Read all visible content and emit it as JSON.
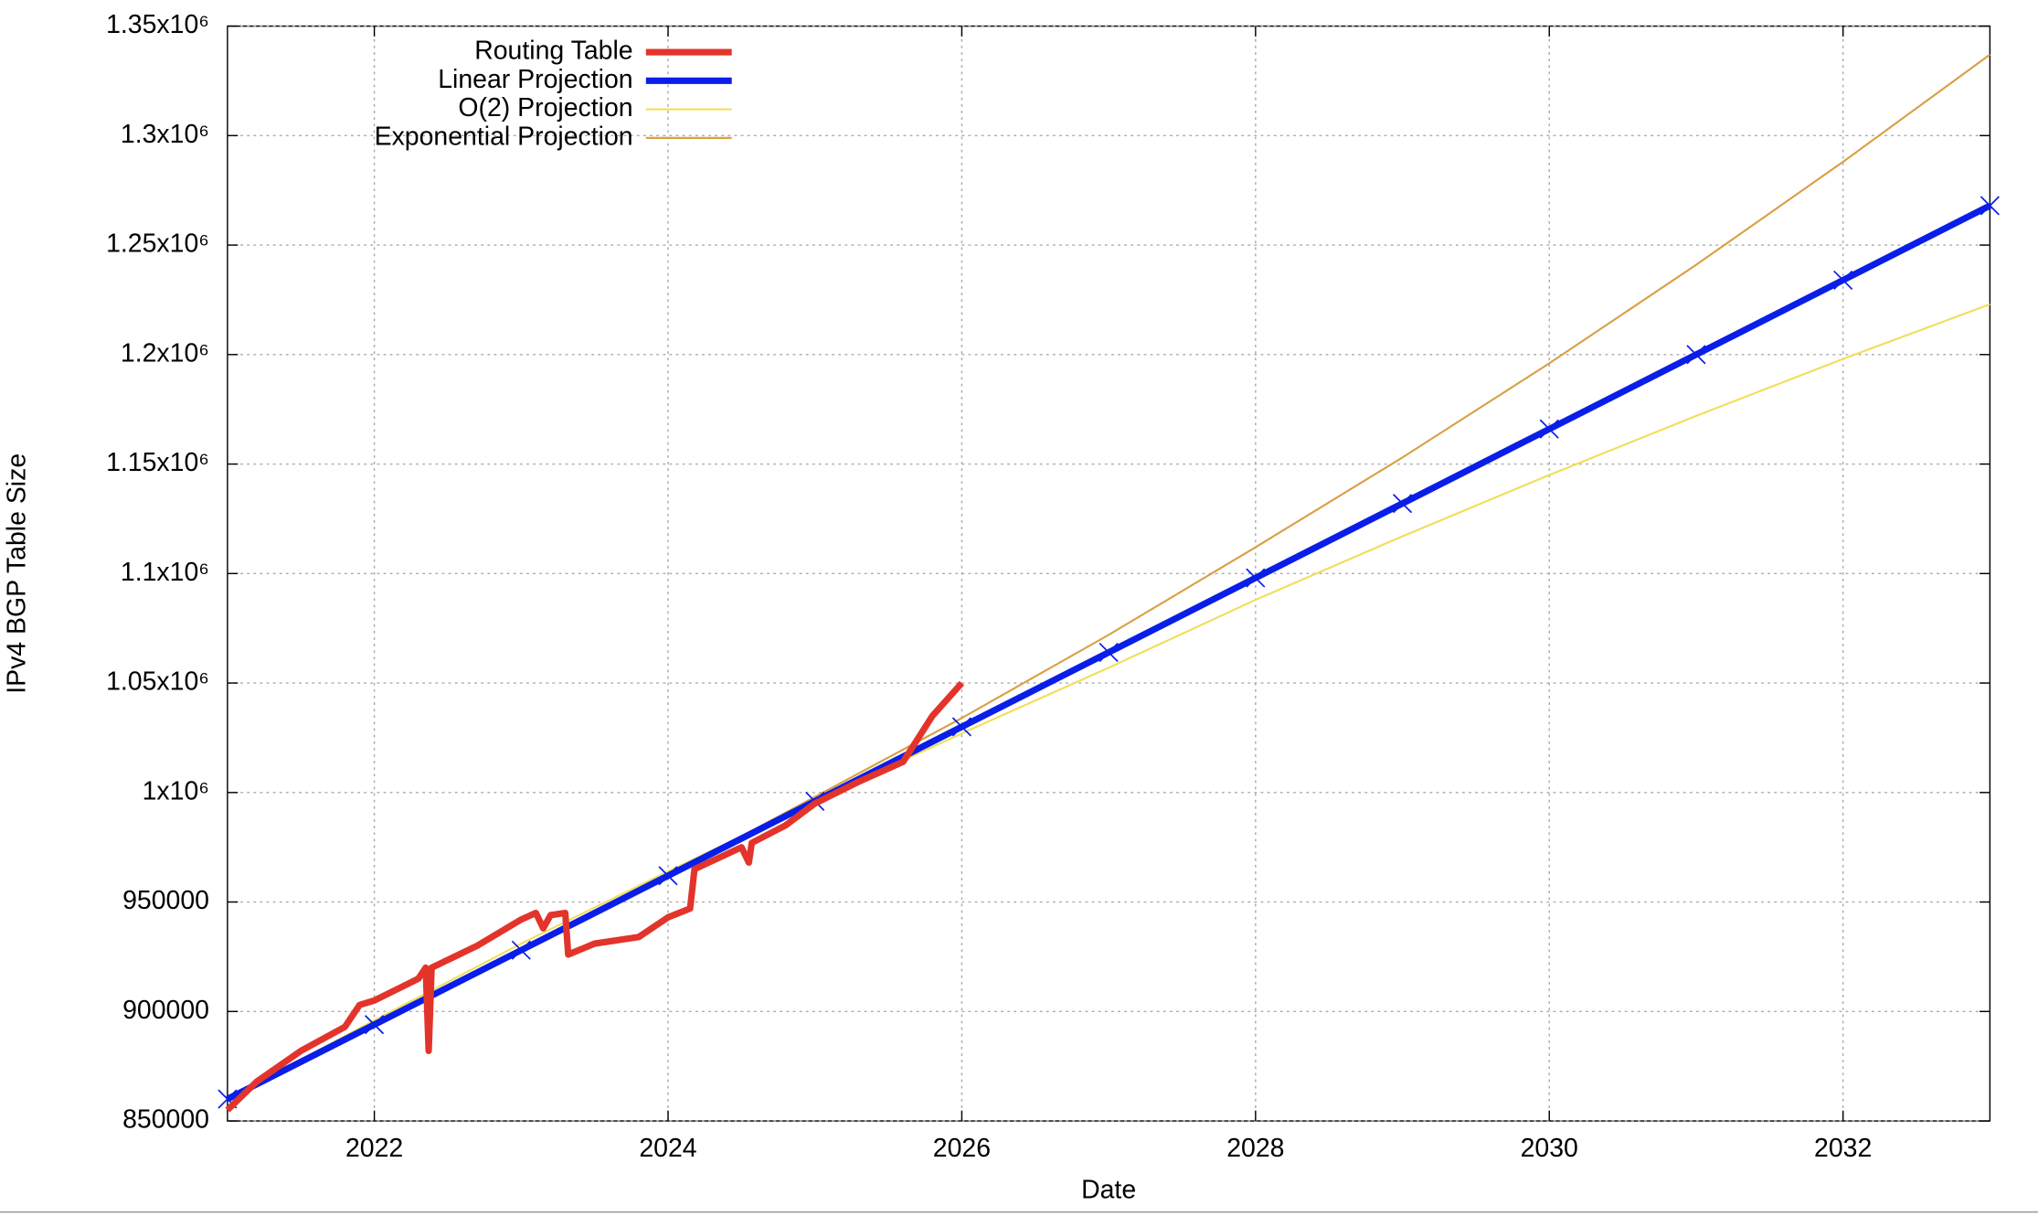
{
  "chart_data": {
    "type": "line",
    "xlabel": "Date",
    "ylabel": "IPv4 BGP Table Size",
    "xlim": [
      2021,
      2033
    ],
    "xticks": [
      2022,
      2024,
      2026,
      2028,
      2030,
      2032
    ],
    "ylim": [
      850000,
      1350000
    ],
    "yticks": [
      850000,
      900000,
      950000,
      {
        "value": 1000000,
        "label": "1x10⁶"
      },
      {
        "value": 1050000,
        "label": "1.05x10⁶"
      },
      {
        "value": 1100000,
        "label": "1.1x10⁶"
      },
      {
        "value": 1150000,
        "label": "1.15x10⁶"
      },
      {
        "value": 1200000,
        "label": "1.2x10⁶"
      },
      {
        "value": 1250000,
        "label": "1.25x10⁶"
      },
      {
        "value": 1300000,
        "label": "1.3x10⁶"
      },
      {
        "value": 1350000,
        "label": "1.35x10⁶"
      }
    ],
    "grid": true,
    "legend": "top-left",
    "series": [
      {
        "name": "Routing Table",
        "color": "#e3342b",
        "width": 5,
        "x": [
          2021.0,
          2021.2,
          2021.5,
          2021.8,
          2021.9,
          2022.0,
          2022.3,
          2022.35,
          2022.37,
          2022.39,
          2022.7,
          2023.0,
          2023.1,
          2023.15,
          2023.2,
          2023.3,
          2023.32,
          2023.5,
          2023.8,
          2024.0,
          2024.15,
          2024.18,
          2024.5,
          2024.55,
          2024.57,
          2024.8,
          2025.0,
          2025.3,
          2025.6,
          2025.8,
          2026.0
        ],
        "values": [
          855000,
          868000,
          882000,
          893000,
          903000,
          905000,
          915000,
          920000,
          882000,
          920000,
          930000,
          942000,
          945000,
          938000,
          944000,
          945000,
          926000,
          931000,
          934000,
          943000,
          947000,
          965000,
          975000,
          968000,
          977000,
          985000,
          995000,
          1005000,
          1014000,
          1035000,
          1050000
        ]
      },
      {
        "name": "Linear Projection",
        "color": "#0a1ee8",
        "width": 5,
        "markers": true,
        "x": [
          2021,
          2022,
          2023,
          2024,
          2025,
          2026,
          2027,
          2028,
          2029,
          2030,
          2031,
          2032,
          2033
        ],
        "values": [
          860000,
          894000,
          928000,
          962000,
          996000,
          1030000,
          1064000,
          1098000,
          1132000,
          1166000,
          1200000,
          1234000,
          1268000
        ]
      },
      {
        "name": "O(2) Projection",
        "color": "#f0df5a",
        "width": 1.5,
        "x": [
          2021,
          2022,
          2023,
          2024,
          2025,
          2026,
          2027,
          2028,
          2029,
          2030,
          2031,
          2032,
          2033
        ],
        "values": [
          860000,
          896000,
          931000,
          964000,
          996000,
          1027000,
          1057000,
          1088000,
          1117000,
          1145000,
          1172000,
          1198000,
          1223000
        ]
      },
      {
        "name": "Exponential Projection",
        "color": "#d9a043",
        "width": 1.5,
        "x": [
          2021,
          2022,
          2023,
          2024,
          2025,
          2026,
          2027,
          2028,
          2029,
          2030,
          2031,
          2032,
          2033
        ],
        "values": [
          860000,
          893000,
          927000,
          962000,
          998000,
          1034000,
          1072000,
          1112000,
          1153000,
          1196000,
          1241000,
          1288000,
          1337000
        ]
      }
    ]
  }
}
